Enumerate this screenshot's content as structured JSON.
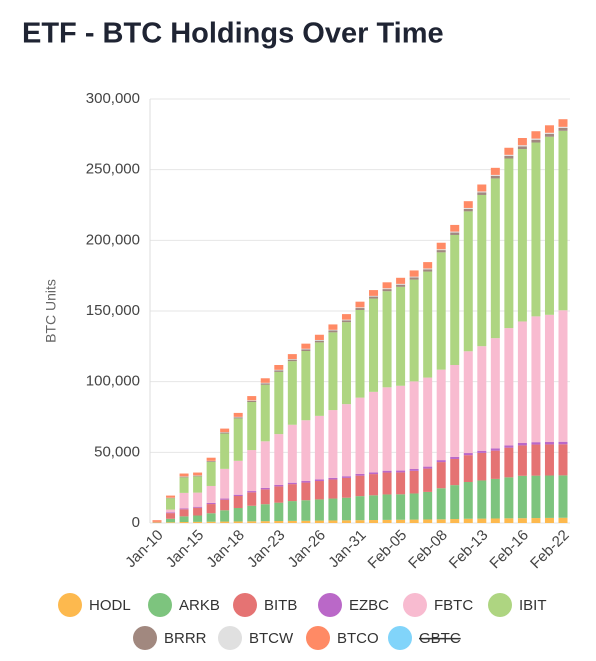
{
  "chart_data": {
    "type": "stacked_bar",
    "title": "ETF - BTC Holdings Over Time",
    "y_label": "BTC Units",
    "categories": [
      "Jan-10",
      null,
      null,
      "Jan-15",
      null,
      null,
      "Jan-18",
      null,
      null,
      "Jan-23",
      null,
      null,
      "Jan-26",
      null,
      null,
      "Jan-31",
      null,
      null,
      "Feb-05",
      null,
      null,
      "Feb-08",
      null,
      null,
      "Feb-13",
      null,
      null,
      "Feb-16",
      null,
      null,
      "Feb-22"
    ],
    "ylim": [
      0,
      300000
    ],
    "yticks": [
      0,
      {
        "value": 50000,
        "label": "50,000"
      },
      {
        "value": 100000,
        "label": "100,000"
      },
      {
        "value": 150000,
        "label": "150,000"
      },
      {
        "value": 200000,
        "label": "200,000"
      },
      {
        "value": 250000,
        "label": "250,000"
      },
      {
        "value": 300000,
        "label": "300,000"
      }
    ],
    "grid": true,
    "legend": "bottom",
    "series": [
      {
        "name": "HODL",
        "color": "#fdb94e",
        "values": [
          300,
          500,
          700,
          800,
          900,
          1000,
          1100,
          1200,
          1300,
          1400,
          1500,
          1600,
          1700,
          1800,
          1900,
          2000,
          2100,
          2200,
          2300,
          2400,
          2500,
          2600,
          2800,
          3000,
          3100,
          3200,
          3300,
          3400,
          3500,
          3600,
          3700
        ]
      },
      {
        "name": "ARKB",
        "color": "#7dc47e",
        "values": [
          200,
          2500,
          4000,
          4500,
          6000,
          8000,
          9500,
          11000,
          12000,
          13000,
          14000,
          14500,
          15000,
          15500,
          16000,
          17000,
          17500,
          18000,
          18000,
          18500,
          19500,
          22000,
          24000,
          26000,
          27000,
          28000,
          29000,
          30000,
          30000,
          30000,
          30000
        ]
      },
      {
        "name": "BITB",
        "color": "#e57373",
        "values": [
          300,
          4000,
          5000,
          5500,
          6500,
          7500,
          8500,
          9500,
          10500,
          11500,
          12000,
          12500,
          13000,
          13500,
          14000,
          14500,
          15000,
          15500,
          15500,
          16000,
          16500,
          18500,
          18500,
          19000,
          19500,
          20000,
          21000,
          21500,
          22000,
          22000,
          22000
        ]
      },
      {
        "name": "EZBC",
        "color": "#ba68c8",
        "values": [
          0,
          500,
          600,
          700,
          800,
          800,
          900,
          900,
          1000,
          1000,
          1000,
          1100,
          1100,
          1100,
          1200,
          1200,
          1200,
          1300,
          1300,
          1300,
          1400,
          1400,
          1500,
          1500,
          1500,
          1600,
          1600,
          1700,
          1700,
          1700,
          1800
        ]
      },
      {
        "name": "FBTC",
        "color": "#f8bbd0",
        "values": [
          0,
          2000,
          11000,
          10000,
          12000,
          21000,
          24000,
          29000,
          33000,
          36000,
          41000,
          43000,
          45000,
          48000,
          51000,
          54000,
          57000,
          59000,
          60000,
          62000,
          63000,
          64000,
          65000,
          72000,
          74000,
          78000,
          83000,
          86000,
          89000,
          90000,
          93000
        ]
      },
      {
        "name": "IBIT",
        "color": "#aed581",
        "values": [
          0,
          8000,
          11000,
          11500,
          17000,
          25000,
          30000,
          34000,
          40000,
          44000,
          45000,
          49000,
          52000,
          55000,
          58000,
          62000,
          66000,
          68000,
          70000,
          72000,
          75000,
          83000,
          92000,
          99000,
          107000,
          113000,
          120000,
          122000,
          123000,
          126000,
          127000
        ]
      },
      {
        "name": "BRRR",
        "color": "#a1887f",
        "values": [
          0,
          300,
          500,
          500,
          600,
          700,
          800,
          900,
          1000,
          1100,
          1100,
          1200,
          1200,
          1300,
          1300,
          1400,
          1400,
          1500,
          1500,
          1500,
          1600,
          1600,
          1700,
          1700,
          1800,
          1800,
          1900,
          1900,
          2000,
          2000,
          2000
        ]
      },
      {
        "name": "BTCW",
        "color": "#e0e0e0",
        "values": [
          0,
          100,
          200,
          200,
          200,
          300,
          300,
          300,
          400,
          400,
          400,
          400,
          500,
          500,
          500,
          500,
          500,
          600,
          600,
          600,
          600,
          600,
          700,
          700,
          700,
          700,
          700,
          800,
          800,
          800,
          800
        ]
      },
      {
        "name": "BTCO",
        "color": "#ff8a65",
        "values": [
          1200,
          1500,
          2000,
          2000,
          2200,
          2500,
          2800,
          3000,
          3200,
          3400,
          3500,
          3600,
          3700,
          3800,
          3900,
          4000,
          4100,
          4200,
          4300,
          4400,
          4500,
          4600,
          4700,
          4800,
          4900,
          5000,
          5000,
          5100,
          5200,
          5300,
          5400
        ]
      },
      {
        "name": "GBTC",
        "color": "#81d4fa",
        "hidden": true,
        "values": [
          null,
          null,
          null,
          null,
          null,
          null,
          null,
          null,
          null,
          null,
          null,
          null,
          null,
          null,
          null,
          null,
          null,
          null,
          null,
          null,
          null,
          null,
          null,
          null,
          null,
          null,
          null,
          null,
          null,
          null,
          null
        ]
      }
    ]
  }
}
